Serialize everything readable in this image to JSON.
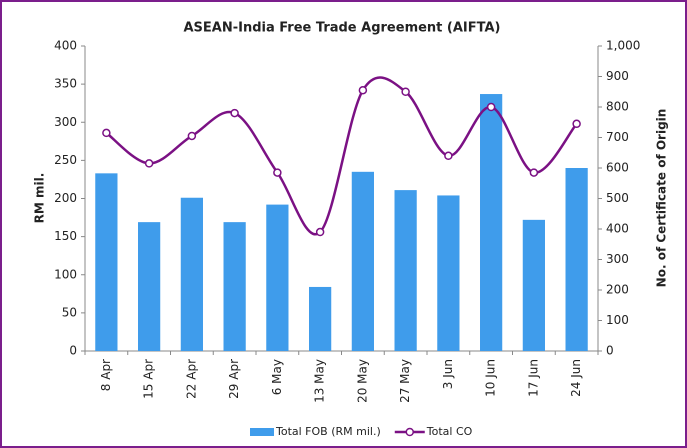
{
  "chart_data": {
    "type": "bar_line",
    "title": "ASEAN-India Free Trade Agreement (AIFTA)",
    "y_label": "RM mil.",
    "y2_label": "No. of Certificate of Origin",
    "categories": [
      "8 Apr",
      "15 Apr",
      "22 Apr",
      "29 Apr",
      "6 May",
      "13 May",
      "20 May",
      "27 May",
      "3 Jun",
      "10 Jun",
      "17 Jun",
      "24 Jun"
    ],
    "series": [
      {
        "name": "Total FOB (RM mil.)",
        "type": "bar",
        "color": "#3f9ceb",
        "values": [
          233,
          169,
          201,
          169,
          192,
          84,
          235,
          211,
          204,
          337,
          172,
          240
        ]
      },
      {
        "name": "Total CO",
        "type": "line",
        "axis": "y2",
        "color": "#7b1184",
        "values": [
          715,
          615,
          705,
          780,
          585,
          390,
          855,
          850,
          640,
          800,
          585,
          745
        ]
      }
    ],
    "ylim": [
      0,
      400
    ],
    "yticks": [
      0,
      50,
      100,
      150,
      200,
      250,
      300,
      350,
      400
    ],
    "y2lim": [
      0,
      1000
    ],
    "y2ticks": [
      0,
      100,
      200,
      300,
      400,
      500,
      600,
      700,
      800,
      900,
      {
        "value": 1000,
        "label": "1,000"
      }
    ],
    "legend": "bottom"
  }
}
